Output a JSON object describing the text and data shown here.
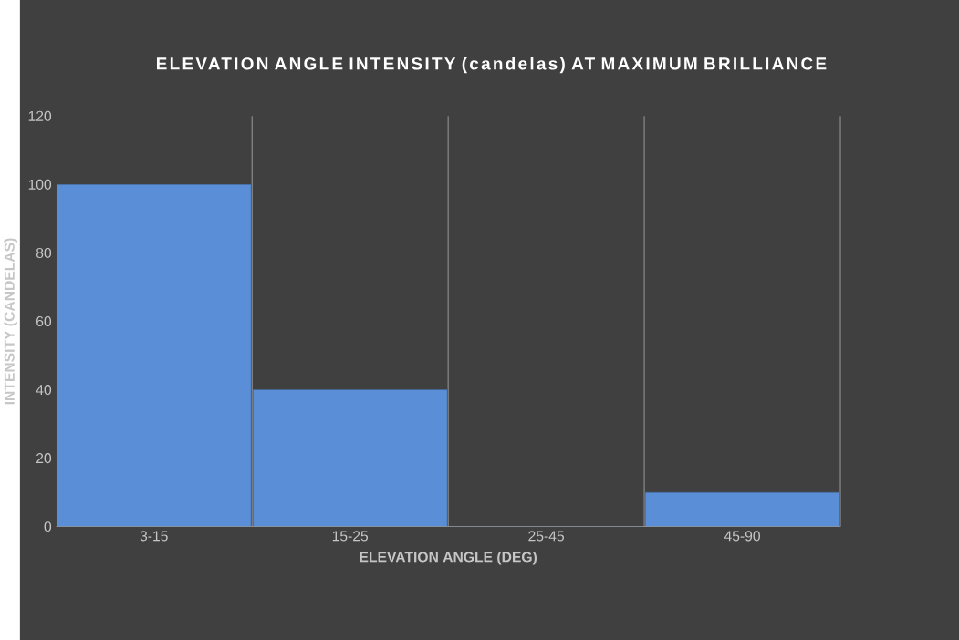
{
  "chart_data": {
    "type": "bar",
    "title": "ELEVATION ANGLE INTENSITY (candelas) AT MAXIMUM BRILLIANCE",
    "xlabel": "ELEVATION ANGLE (DEG)",
    "ylabel": "INTENSITY (CANDELAS)",
    "categories": [
      "3-15",
      "15-25",
      "25-45",
      "45-90"
    ],
    "values": [
      100,
      40,
      0,
      10
    ],
    "color": "#5a8fd8",
    "ylim": [
      0,
      120
    ],
    "yticks": [
      0,
      20,
      40,
      60,
      80,
      100,
      120
    ],
    "grid": "x"
  }
}
